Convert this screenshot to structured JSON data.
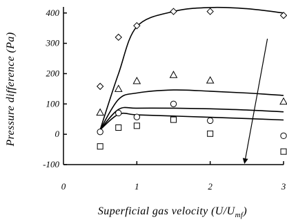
{
  "chart_data": {
    "type": "scatter",
    "title": "",
    "xlabel": "Superficial gas velocity (U/U",
    "xlabel_sub": "mf",
    "xlabel_close": ")",
    "ylabel": "Pressure difference (Pa)",
    "xlim": [
      0,
      3
    ],
    "ylim": [
      -100,
      420
    ],
    "x_ticks": [
      0,
      1,
      2,
      3
    ],
    "y_ticks": [
      -100,
      0,
      100,
      200,
      300,
      400
    ],
    "grid": false,
    "legend": "none",
    "series": [
      {
        "marker": "diamond",
        "points": [
          [
            0.5,
            158
          ],
          [
            0.75,
            320
          ],
          [
            1.0,
            358
          ],
          [
            1.5,
            405
          ],
          [
            2.0,
            405
          ],
          [
            3.0,
            392
          ]
        ],
        "curve": [
          [
            0.5,
            15
          ],
          [
            0.75,
            200
          ],
          [
            1.0,
            355
          ],
          [
            1.5,
            405
          ],
          [
            2.0,
            418
          ],
          [
            2.5,
            414
          ],
          [
            3.0,
            400
          ]
        ]
      },
      {
        "marker": "triangle",
        "points": [
          [
            0.5,
            72
          ],
          [
            0.75,
            150
          ],
          [
            1.0,
            176
          ],
          [
            1.5,
            196
          ],
          [
            2.0,
            178
          ],
          [
            3.0,
            108
          ]
        ],
        "curve": [
          [
            0.5,
            15
          ],
          [
            0.75,
            115
          ],
          [
            1.0,
            136
          ],
          [
            1.5,
            146
          ],
          [
            2.0,
            142
          ],
          [
            2.5,
            136
          ],
          [
            3.0,
            128
          ]
        ]
      },
      {
        "marker": "circle",
        "points": [
          [
            0.5,
            8
          ],
          [
            0.75,
            70
          ],
          [
            1.0,
            57
          ],
          [
            1.5,
            100
          ],
          [
            2.0,
            45
          ],
          [
            3.0,
            -5
          ]
        ],
        "curve": [
          [
            0.5,
            15
          ],
          [
            0.75,
            82
          ],
          [
            1.0,
            86
          ],
          [
            1.5,
            86
          ],
          [
            2.0,
            84
          ],
          [
            2.5,
            80
          ],
          [
            3.0,
            74
          ]
        ]
      },
      {
        "marker": "square",
        "points": [
          [
            0.5,
            -40
          ],
          [
            0.75,
            22
          ],
          [
            1.0,
            28
          ],
          [
            1.5,
            48
          ],
          [
            2.0,
            2
          ],
          [
            3.0,
            -57
          ]
        ],
        "curve": [
          [
            0.5,
            15
          ],
          [
            0.75,
            66
          ],
          [
            1.0,
            64
          ],
          [
            1.5,
            60
          ],
          [
            2.0,
            56
          ],
          [
            2.5,
            52
          ],
          [
            3.0,
            47
          ]
        ]
      }
    ],
    "annotation": {
      "type": "arrow",
      "from": [
        2.78,
        315
      ],
      "to": [
        2.47,
        -100
      ],
      "direction": "downward"
    }
  }
}
